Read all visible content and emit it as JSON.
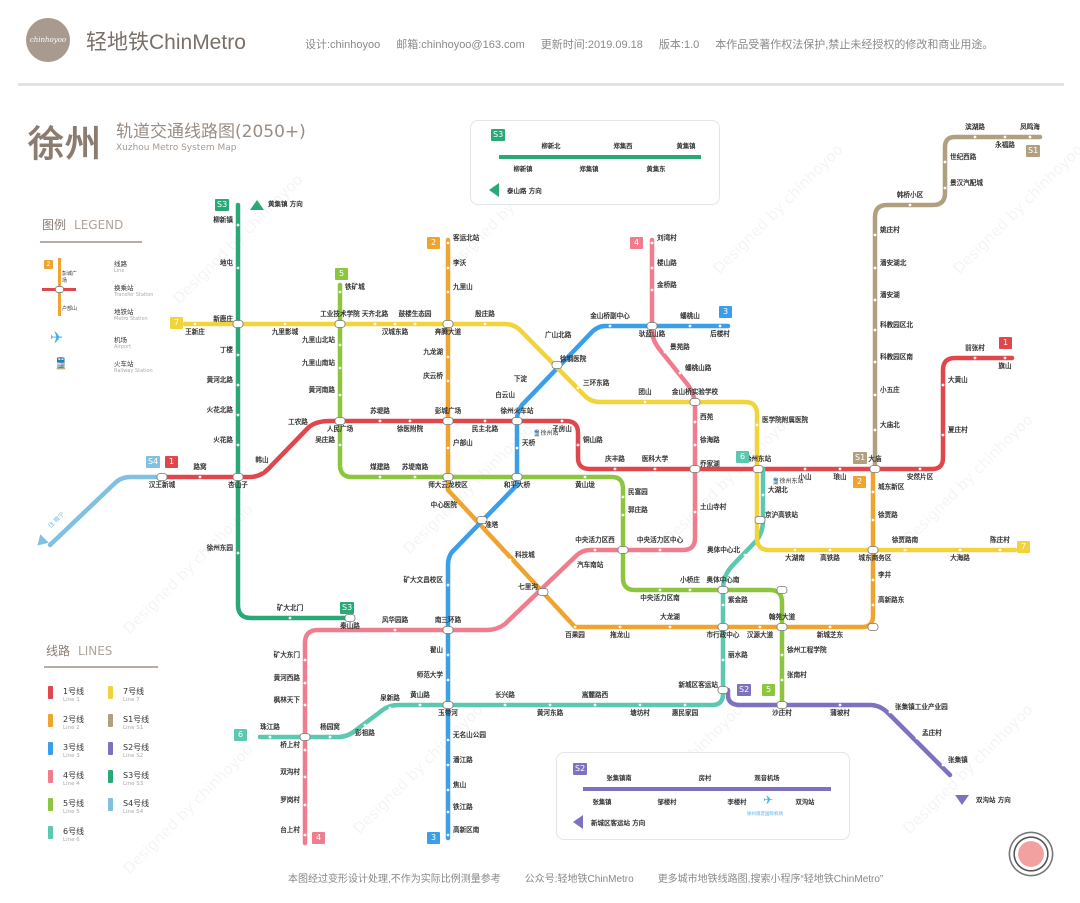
{
  "header": {
    "logo_text": "chinhoyoo",
    "brand": "轻地铁ChinMetro",
    "meta": [
      "设计:chinhoyoo",
      "邮箱:chinhoyoo@163.com",
      "更新时间:2019.09.18",
      "版本:1.0",
      "本作品受著作权法保护,禁止未经授权的修改和商业用途。"
    ]
  },
  "title": {
    "city": "徐州",
    "main": "轨道交通线路图(2050+)",
    "en": "Xuzhou Metro System Map"
  },
  "legend": {
    "title": "图例",
    "title_en": "LEGEND",
    "sample": {
      "badge": "2",
      "top": "彭城广场",
      "bottom": "户部山"
    },
    "items": [
      {
        "label": "线路",
        "en": "Line"
      },
      {
        "label": "换乘站",
        "en": "Transfer Station"
      },
      {
        "label": "地铁站",
        "en": "Metro Station"
      },
      {
        "label": "机场",
        "en": "Airport",
        "icon": "airplane-icon"
      },
      {
        "label": "火车站",
        "en": "Railway Station",
        "icon": "train-icon"
      }
    ]
  },
  "lines_legend": {
    "title": "线路",
    "title_en": "LINES"
  },
  "lines": [
    {
      "id": "1",
      "name": "1号线",
      "en": "Line 1",
      "badge": "1",
      "color": "#e0474c",
      "stations": [
        "汉王新城",
        "路窝",
        "杏山子",
        "韩山",
        "工农路",
        "人民广场",
        "苏堤路",
        "徐医附院",
        "彭城广场",
        "民主北路",
        "徐州火车站",
        "子房山",
        "铜山路",
        "庆丰路",
        "医科大学",
        "乔家湖",
        "徐州东站",
        "小山",
        "琅山",
        "大庙",
        "安然片区",
        "夏庄村",
        "大黄山",
        "前张村",
        "旗山"
      ]
    },
    {
      "id": "2",
      "name": "2号线",
      "en": "Line 2",
      "badge": "2",
      "color": "#f0a430",
      "stations": [
        "客运北站",
        "李沃",
        "九里山",
        "九龙湖",
        "庆云桥",
        "户部山",
        "师大云龙校区",
        "中心医院",
        "淮塔",
        "科技城",
        "七里沟",
        "百果园",
        "拖龙山",
        "大龙湖",
        "市行政中心",
        "汉源大道",
        "翰苑大道",
        "新城芝东",
        "高新路东",
        "李井",
        "徐贾路",
        "城东新区"
      ]
    },
    {
      "id": "3",
      "name": "3号线",
      "en": "Line 3",
      "badge": "3",
      "color": "#3a9ee8",
      "stations": [
        "后楼村",
        "蟠桃山",
        "金山桥副中心",
        "驮蓝山路",
        "下淀",
        "白云山",
        "天桥",
        "和平大桥",
        "矿大文昌校区",
        "南三环路",
        "翟山",
        "师范大学",
        "玉带河",
        "无名山公园",
        "潘江路",
        "焦山",
        "铁江路",
        "高新区南"
      ]
    },
    {
      "id": "4",
      "name": "4号线",
      "en": "Line 4",
      "badge": "4",
      "color": "#ef7d8e",
      "stations": [
        "刘湾村",
        "楼山路",
        "金桥路",
        "景苑路",
        "蟠桃山路",
        "西苑",
        "徐海路",
        "土山寺村",
        "中央活力区中心",
        "中央活力区西",
        "汽车南站",
        "风华园路",
        "矿大东门",
        "黄河西路",
        "枫林天下",
        "桥上村",
        "双沟村",
        "罗岗村",
        "台上村"
      ]
    },
    {
      "id": "5",
      "name": "5号线",
      "en": "Line 5",
      "badge": "5",
      "color": "#8cc63f",
      "stations": [
        "铁矿城",
        "九里山北站",
        "九里山南站",
        "黄河南路",
        "吴庄路",
        "煤建路",
        "苏堤南路",
        "黄山垅",
        "民富园",
        "郭庄路",
        "中央活力区南",
        "小桥庄",
        "奥体中心南",
        "徐州工程学院",
        "张南村",
        "沙庄村"
      ]
    },
    {
      "id": "6",
      "name": "6号线",
      "en": "Line 6",
      "badge": "6",
      "color": "#5cc8b0",
      "stations": [
        "珠江路",
        "杨园窝",
        "彭祖路",
        "泉新路",
        "黄山路",
        "长兴路",
        "黄河东路",
        "嵩麓路西",
        "塘坊村",
        "惠民家园",
        "新城区客运站",
        "丽水路",
        "紫金路",
        "奥体中心北",
        "大湖北"
      ]
    },
    {
      "id": "7",
      "name": "7号线",
      "en": "Line 7",
      "badge": "7",
      "color": "#f2d33a",
      "stations": [
        "王新庄",
        "九里影城",
        "工业技术学院",
        "天齐北路",
        "汉城东路",
        "鼓楼生态园",
        "奔腾大道",
        "殷庄路",
        "广山北路",
        "徐钢医院",
        "三环东路",
        "团山",
        "金山桥实验学校",
        "医学院附属医院",
        "京沪高铁站",
        "大湖南",
        "高铁路",
        "城东商务区",
        "徐贾路南",
        "大海路",
        "陈庄村"
      ]
    },
    {
      "id": "S1",
      "name": "S1号线",
      "en": "Line S1",
      "badge": "S1",
      "color": "#b0a080",
      "stations": [
        "凤鸣海",
        "滨湖路",
        "永福路",
        "世纪西路",
        "景汉汽配城",
        "韩桥小区",
        "姚庄村",
        "潘安湖北",
        "潘安湖",
        "科教园区北",
        "科教园区南",
        "小五庄",
        "大庙北"
      ]
    },
    {
      "id": "S2",
      "name": "S2号线",
      "en": "Line S2",
      "badge": "S2",
      "color": "#8070c0",
      "stations": [
        "蒲坡村",
        "张集镇工业产业园",
        "孟庄村",
        "张集镇"
      ]
    },
    {
      "id": "S3",
      "name": "S3号线",
      "en": "Line S3",
      "badge": "S3",
      "color": "#2aa876",
      "stations": [
        "柳新镇",
        "地屯",
        "新鹿庄",
        "丁楼",
        "黄河北路",
        "火花北路",
        "火花路",
        "徐州东园",
        "矿大北门",
        "秦山路"
      ]
    },
    {
      "id": "S4",
      "name": "S4号线",
      "en": "Line S4",
      "badge": "S4",
      "color": "#80c0e0",
      "stations": []
    }
  ],
  "map_labels": {
    "xuzhou_station": "徐州站",
    "xuzhou_east": "徐州东站"
  },
  "directions": {
    "s3_north": "黄集镇 方向",
    "s2_south": "双沟站 方向",
    "s4_west": "往 睢宁"
  },
  "insets": {
    "s3": {
      "badge": "S3",
      "above": [
        "柳新北",
        "郑集西",
        "黄集镇"
      ],
      "below": [
        "柳新镇",
        "郑集镇",
        "黄集东"
      ],
      "direction": "泰山路 方向"
    },
    "s2": {
      "badge": "S2",
      "above": [
        "张集镇南",
        "房村",
        "观音机场"
      ],
      "below": [
        "张集镇",
        "邹楼村",
        "李楼村",
        "双沟站"
      ],
      "direction": "新城区客运站 方向",
      "airport": "徐州观音国际机场"
    }
  },
  "footer": [
    "本图经过变形设计处理,不作为实际比例测量参考",
    "公众号:轻地铁ChinMetro",
    "更多城市地铁线路图,搜索小程序“轻地铁ChinMetro”"
  ],
  "watermark": "Designed by chinhoyoo"
}
